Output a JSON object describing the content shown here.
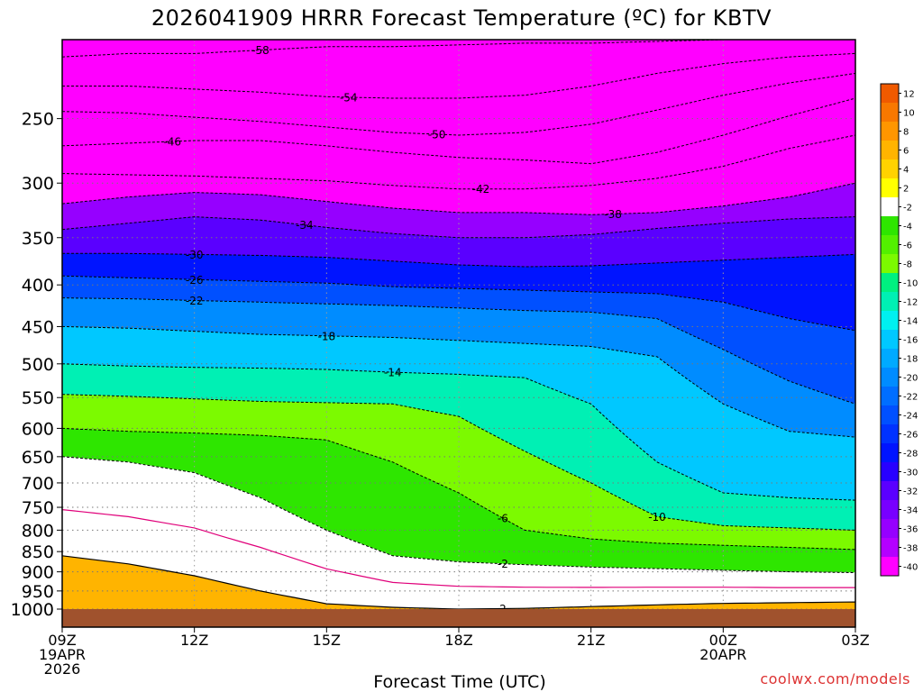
{
  "title": "2026041909 HRRR Forecast Temperature (ºC) for KBTV",
  "credit": "coolwx.com/models",
  "colors": {
    "frame": "#000000",
    "ground": "#a0522d",
    "freezing_line": "#e0007a"
  },
  "chart_data": {
    "type": "heatmap",
    "title": "2026041909 HRRR Forecast Temperature (ºC) for KBTV",
    "xlabel": "Forecast Time (UTC)",
    "ylabel": "",
    "x_range": [
      "09Z 19APR 2026",
      "03Z 20APR 2026"
    ],
    "x_ticks": [
      {
        "line1": "09Z",
        "line2": "19APR",
        "line3": "2026",
        "hour": 0
      },
      {
        "line1": "12Z",
        "line2": "",
        "line3": "",
        "hour": 3
      },
      {
        "line1": "15Z",
        "line2": "",
        "line3": "",
        "hour": 6
      },
      {
        "line1": "18Z",
        "line2": "",
        "line3": "",
        "hour": 9
      },
      {
        "line1": "21Z",
        "line2": "",
        "line3": "",
        "hour": 12
      },
      {
        "line1": "00Z",
        "line2": "20APR",
        "line3": "",
        "hour": 15
      },
      {
        "line1": "03Z",
        "line2": "",
        "line3": "",
        "hour": 18
      }
    ],
    "y_scale": "pressure (hPa), log, inverted",
    "ylim": [
      1000,
      200
    ],
    "y_ticks": [
      250,
      300,
      350,
      400,
      450,
      500,
      550,
      600,
      650,
      700,
      750,
      800,
      850,
      900,
      950,
      1000
    ],
    "grid": true,
    "colorbar": {
      "placement": "right",
      "levels": [
        12,
        10,
        8,
        6,
        4,
        2,
        -2,
        -4,
        -6,
        -8,
        -10,
        -12,
        -14,
        -16,
        -18,
        -20,
        -22,
        -24,
        -26,
        -28,
        -30,
        -32,
        -34,
        -36,
        -38,
        -40
      ],
      "colors": [
        "#f05a00",
        "#f87800",
        "#ff9600",
        "#ffb400",
        "#ffd200",
        "#ffff00",
        "#ffffff",
        "#2ee600",
        "#53f000",
        "#7cfa00",
        "#00f080",
        "#00f0b4",
        "#00f0f0",
        "#00c8ff",
        "#00aaff",
        "#008cff",
        "#006eff",
        "#0050ff",
        "#0032ff",
        "#0014ff",
        "#2800ff",
        "#5a00ff",
        "#7800ff",
        "#9600ff",
        "#b400ff",
        "#ff00ff"
      ]
    },
    "isotherms": [
      {
        "label": "-58",
        "p": [
          210,
          208,
          208,
          206,
          204,
          204,
          203,
          202,
          202,
          201,
          200,
          200,
          200
        ]
      },
      {
        "label": "-54",
        "p": [
          228,
          228,
          230,
          232,
          235,
          236,
          236,
          234,
          228,
          220,
          214,
          210,
          208
        ]
      },
      {
        "label": "-50",
        "p": [
          245,
          246,
          249,
          252,
          256,
          260,
          262,
          260,
          254,
          244,
          234,
          226,
          220
        ]
      },
      {
        "label": "-46",
        "p": [
          270,
          268,
          266,
          266,
          270,
          275,
          279,
          281,
          284,
          275,
          262,
          248,
          236
        ]
      },
      {
        "label": "-42",
        "p": [
          292,
          293,
          294,
          296,
          298,
          302,
          305,
          305,
          302,
          296,
          286,
          272,
          262
        ]
      },
      {
        "label": "-38",
        "p": [
          318,
          312,
          308,
          310,
          316,
          322,
          326,
          326,
          328,
          326,
          320,
          312,
          300
        ]
      },
      {
        "label": "-34",
        "p": [
          342,
          336,
          330,
          333,
          340,
          346,
          350,
          350,
          347,
          341,
          336,
          332,
          330
        ]
      },
      {
        "label": "-30",
        "p": [
          366,
          366,
          367,
          368,
          370,
          374,
          378,
          380,
          379,
          376,
          373,
          370,
          367
        ]
      },
      {
        "label": "-26",
        "p": [
          390,
          392,
          394,
          396,
          398,
          402,
          404,
          406,
          408,
          410,
          420,
          440,
          455
        ]
      },
      {
        "label": "-22",
        "p": [
          415,
          416,
          418,
          420,
          422,
          424,
          427,
          430,
          432,
          440,
          480,
          525,
          560
        ]
      },
      {
        "label": "-18",
        "p": [
          450,
          452,
          456,
          460,
          462,
          464,
          468,
          472,
          476,
          490,
          560,
          605,
          615
        ]
      },
      {
        "label": "-14",
        "p": [
          500,
          503,
          505,
          506,
          508,
          512,
          515,
          520,
          560,
          660,
          720,
          730,
          735
        ]
      },
      {
        "label": "-10",
        "p": [
          545,
          548,
          552,
          556,
          558,
          560,
          580,
          640,
          700,
          770,
          790,
          795,
          800
        ]
      },
      {
        "label": "-6",
        "p": [
          600,
          605,
          608,
          612,
          620,
          660,
          720,
          800,
          820,
          830,
          835,
          840,
          845
        ]
      },
      {
        "label": "-2",
        "p": [
          650,
          660,
          680,
          730,
          800,
          860,
          875,
          882,
          888,
          892,
          896,
          900,
          902
        ]
      },
      {
        "label": "2",
        "p": [
          860,
          880,
          910,
          950,
          985,
          995,
          1000,
          998,
          993,
          988,
          984,
          982,
          980
        ]
      }
    ]
  },
  "ground_label": ""
}
